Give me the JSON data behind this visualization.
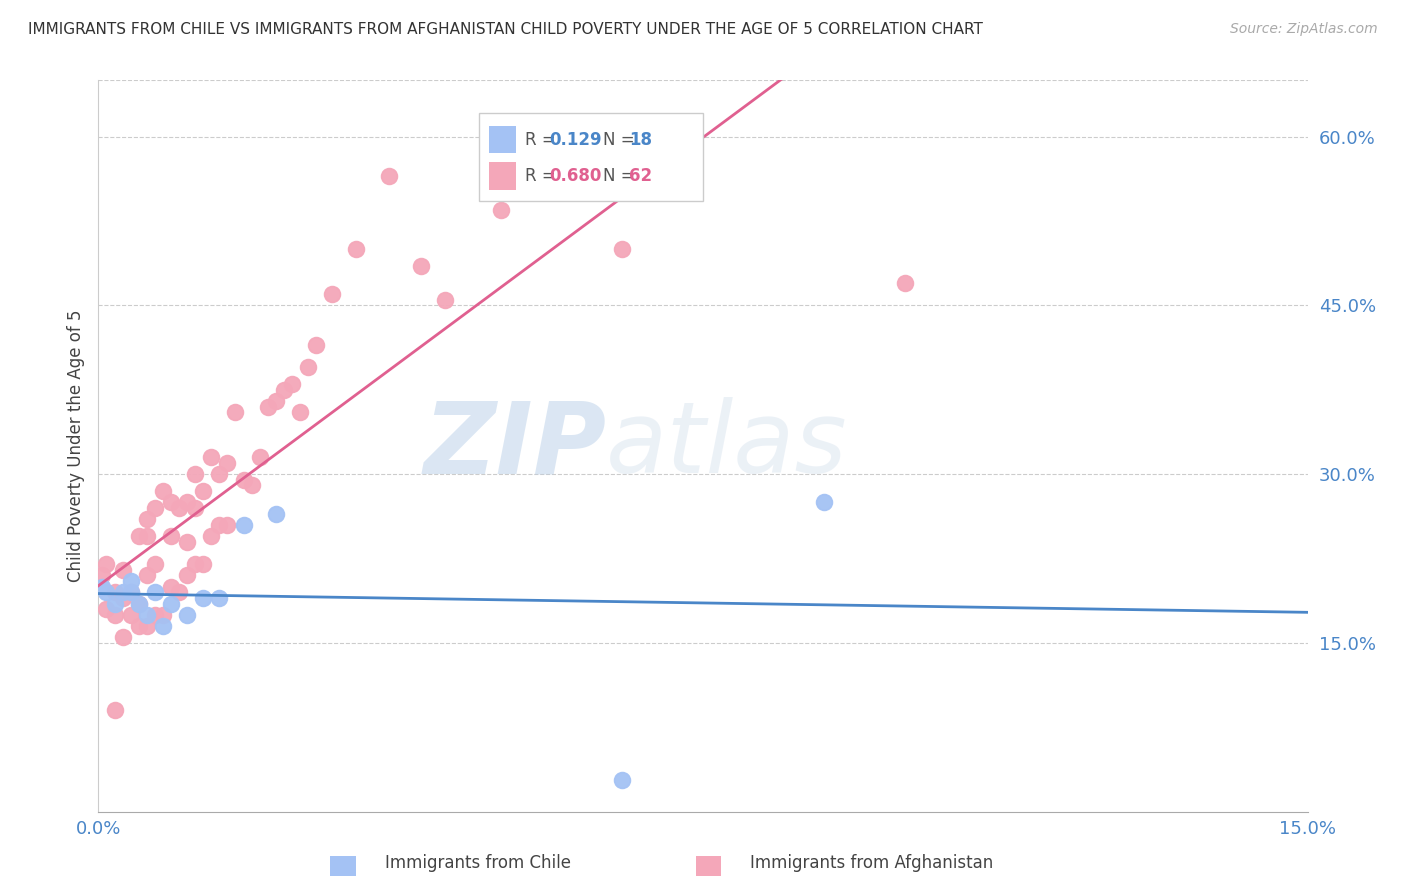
{
  "title": "IMMIGRANTS FROM CHILE VS IMMIGRANTS FROM AFGHANISTAN CHILD POVERTY UNDER THE AGE OF 5 CORRELATION CHART",
  "source": "Source: ZipAtlas.com",
  "ylabel": "Child Poverty Under the Age of 5",
  "xlim": [
    0.0,
    0.15
  ],
  "ylim": [
    0.0,
    0.65
  ],
  "x_ticks": [
    0.0,
    0.03,
    0.06,
    0.09,
    0.12,
    0.15
  ],
  "x_tick_labels": [
    "0.0%",
    "",
    "",
    "",
    "",
    "15.0%"
  ],
  "y_ticks_right": [
    0.15,
    0.3,
    0.45,
    0.6
  ],
  "y_tick_labels_right": [
    "15.0%",
    "30.0%",
    "45.0%",
    "60.0%"
  ],
  "chile_R": "0.129",
  "chile_N": "18",
  "afghan_R": "0.680",
  "afghan_N": "62",
  "chile_color": "#a4c2f4",
  "afghan_color": "#f4a7b9",
  "chile_line_color": "#4a86c8",
  "afghan_line_color": "#e06090",
  "watermark_zip": "ZIP",
  "watermark_atlas": "atlas",
  "chile_scatter_x": [
    0.0005,
    0.001,
    0.002,
    0.003,
    0.004,
    0.004,
    0.005,
    0.006,
    0.007,
    0.008,
    0.009,
    0.011,
    0.013,
    0.015,
    0.018,
    0.022,
    0.09,
    0.065
  ],
  "chile_scatter_y": [
    0.2,
    0.195,
    0.185,
    0.195,
    0.195,
    0.205,
    0.185,
    0.175,
    0.195,
    0.165,
    0.185,
    0.175,
    0.19,
    0.19,
    0.255,
    0.265,
    0.275,
    0.028
  ],
  "afghan_scatter_x": [
    0.0005,
    0.001,
    0.001,
    0.002,
    0.002,
    0.003,
    0.003,
    0.003,
    0.004,
    0.004,
    0.005,
    0.005,
    0.005,
    0.006,
    0.006,
    0.006,
    0.006,
    0.007,
    0.007,
    0.007,
    0.008,
    0.008,
    0.009,
    0.009,
    0.009,
    0.01,
    0.01,
    0.011,
    0.011,
    0.011,
    0.012,
    0.012,
    0.012,
    0.013,
    0.013,
    0.014,
    0.014,
    0.015,
    0.015,
    0.016,
    0.016,
    0.017,
    0.018,
    0.019,
    0.02,
    0.021,
    0.022,
    0.023,
    0.024,
    0.025,
    0.026,
    0.027,
    0.029,
    0.032,
    0.036,
    0.04,
    0.043,
    0.05,
    0.06,
    0.065,
    0.1,
    0.002
  ],
  "afghan_scatter_y": [
    0.21,
    0.18,
    0.22,
    0.175,
    0.195,
    0.155,
    0.19,
    0.215,
    0.175,
    0.195,
    0.165,
    0.185,
    0.245,
    0.165,
    0.21,
    0.245,
    0.26,
    0.175,
    0.22,
    0.27,
    0.175,
    0.285,
    0.2,
    0.245,
    0.275,
    0.195,
    0.27,
    0.21,
    0.24,
    0.275,
    0.22,
    0.27,
    0.3,
    0.22,
    0.285,
    0.245,
    0.315,
    0.255,
    0.3,
    0.255,
    0.31,
    0.355,
    0.295,
    0.29,
    0.315,
    0.36,
    0.365,
    0.375,
    0.38,
    0.355,
    0.395,
    0.415,
    0.46,
    0.5,
    0.565,
    0.485,
    0.455,
    0.535,
    0.57,
    0.5,
    0.47,
    0.09
  ]
}
